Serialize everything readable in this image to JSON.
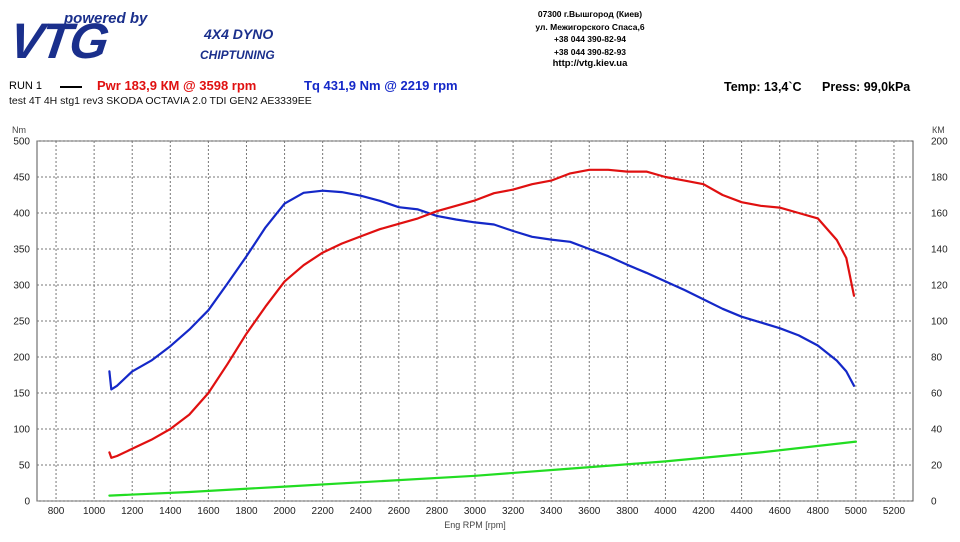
{
  "header": {
    "powered_by": "powered by",
    "brand": "VTG",
    "dyno": "4X4 DYNO",
    "chiptuning": "CHIPTUNING",
    "address_lines": [
      "07300 г.Вышгород (Киев)",
      "ул. Межигорского Спаса,6",
      "+38 044 390-82-94",
      "+38 044 390-82-93"
    ],
    "url": "http://vtg.kiev.ua"
  },
  "run": {
    "label": "RUN 1",
    "pwr": "Pwr  183,9 КМ @ 3598 rpm",
    "tq": "Tq  431,9 Nm @ 2219 rpm",
    "temp": "Temp: 13,4`C",
    "press": "Press: 99,0kPa",
    "description": "test  4T 4H  stg1 rev3 SKODA OCTAVIA 2.0 TDI GEN2 AE3339EE"
  },
  "colors": {
    "power": "#e01010",
    "torque": "#1428c8",
    "loss": "#22dd22",
    "grid": "#777777"
  },
  "chart_data": {
    "type": "line",
    "xlabel": "Eng RPM [rpm]",
    "ylabel_left": "Nm",
    "ylabel_right": "КМ",
    "xlim": [
      700,
      5300
    ],
    "ylim_left": [
      0,
      500
    ],
    "ylim_right": [
      0,
      200
    ],
    "x_ticks": [
      800,
      1000,
      1200,
      1400,
      1600,
      1800,
      2000,
      2200,
      2400,
      2600,
      2800,
      3000,
      3200,
      3400,
      3600,
      3800,
      4000,
      4200,
      4400,
      4600,
      4800,
      5000,
      5200
    ],
    "y_left_ticks": [
      0,
      50,
      100,
      150,
      200,
      250,
      300,
      350,
      400,
      450,
      500
    ],
    "y_right_ticks": [
      0,
      20,
      40,
      60,
      80,
      100,
      120,
      140,
      160,
      180,
      200
    ],
    "grid": true,
    "series": [
      {
        "name": "Tq",
        "axis": "left",
        "color": "#1428c8",
        "x": [
          1080,
          1090,
          1120,
          1200,
          1300,
          1400,
          1500,
          1600,
          1700,
          1800,
          1900,
          2000,
          2100,
          2200,
          2300,
          2400,
          2500,
          2600,
          2700,
          2800,
          2900,
          3000,
          3100,
          3200,
          3300,
          3400,
          3500,
          3600,
          3700,
          3800,
          3900,
          4000,
          4100,
          4200,
          4300,
          4400,
          4500,
          4600,
          4700,
          4800,
          4900,
          4950,
          4990
        ],
        "y": [
          180,
          155,
          160,
          180,
          195,
          215,
          238,
          265,
          302,
          340,
          380,
          413,
          428,
          431,
          429,
          424,
          417,
          408,
          405,
          396,
          391,
          387,
          384,
          375,
          367,
          363,
          360,
          350,
          340,
          328,
          317,
          305,
          293,
          280,
          267,
          256,
          248,
          240,
          230,
          216,
          195,
          180,
          160
        ]
      },
      {
        "name": "Pwr",
        "axis": "right",
        "color": "#e01010",
        "x": [
          1080,
          1090,
          1120,
          1200,
          1300,
          1400,
          1500,
          1600,
          1700,
          1800,
          1900,
          2000,
          2100,
          2200,
          2300,
          2400,
          2500,
          2600,
          2700,
          2800,
          2900,
          3000,
          3100,
          3200,
          3300,
          3400,
          3500,
          3600,
          3700,
          3800,
          3900,
          4000,
          4100,
          4200,
          4300,
          4400,
          4500,
          4600,
          4700,
          4800,
          4900,
          4950,
          4990
        ],
        "y": [
          27,
          24,
          25,
          29,
          34,
          40,
          48,
          60,
          76,
          93,
          108,
          122,
          131,
          138,
          143,
          147,
          151,
          154,
          157,
          161,
          164,
          167,
          171,
          173,
          176,
          178,
          182,
          184,
          184,
          183,
          183,
          180,
          178,
          176,
          170,
          166,
          164,
          163,
          160,
          157,
          145,
          135,
          114
        ]
      },
      {
        "name": "",
        "axis": "right",
        "color": "#22dd22",
        "x": [
          1080,
          1500,
          2000,
          2500,
          3000,
          3500,
          4000,
          4500,
          5000
        ],
        "y": [
          3,
          5,
          8,
          11,
          14,
          18,
          22,
          27,
          33
        ]
      }
    ]
  }
}
